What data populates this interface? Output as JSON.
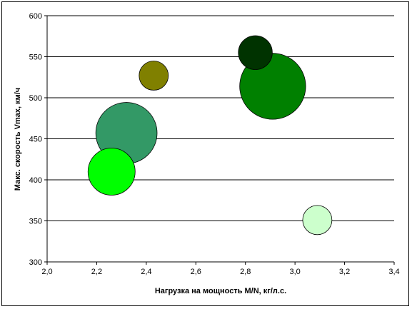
{
  "chart_data": {
    "type": "scatter",
    "variant": "bubble",
    "title": "",
    "xlabel": "Нагрузка на мощность M/N, кг/л.с.",
    "ylabel": "Макс. скорость Vmax, км/ч",
    "xlim": [
      2.0,
      3.4
    ],
    "ylim": [
      300,
      600
    ],
    "x_ticks": [
      "2,0",
      "2,2",
      "2,4",
      "2,6",
      "2,8",
      "3,0",
      "3,2",
      "3,4"
    ],
    "y_ticks": [
      "300",
      "350",
      "400",
      "450",
      "500",
      "550",
      "600"
    ],
    "grid": "horizontal",
    "legend": "none",
    "background": "#ffffff",
    "series": [
      {
        "x": 2.26,
        "y": 410,
        "size": 1.0,
        "color": "#00ff00"
      },
      {
        "x": 2.32,
        "y": 457,
        "size": 1.3,
        "color": "#339966"
      },
      {
        "x": 2.43,
        "y": 527,
        "size": 0.62,
        "color": "#808000"
      },
      {
        "x": 2.84,
        "y": 555,
        "size": 0.72,
        "color": "#003300"
      },
      {
        "x": 2.91,
        "y": 514,
        "size": 1.4,
        "color": "#008000"
      },
      {
        "x": 3.09,
        "y": 351,
        "size": 0.62,
        "color": "#ccffcc"
      }
    ]
  }
}
